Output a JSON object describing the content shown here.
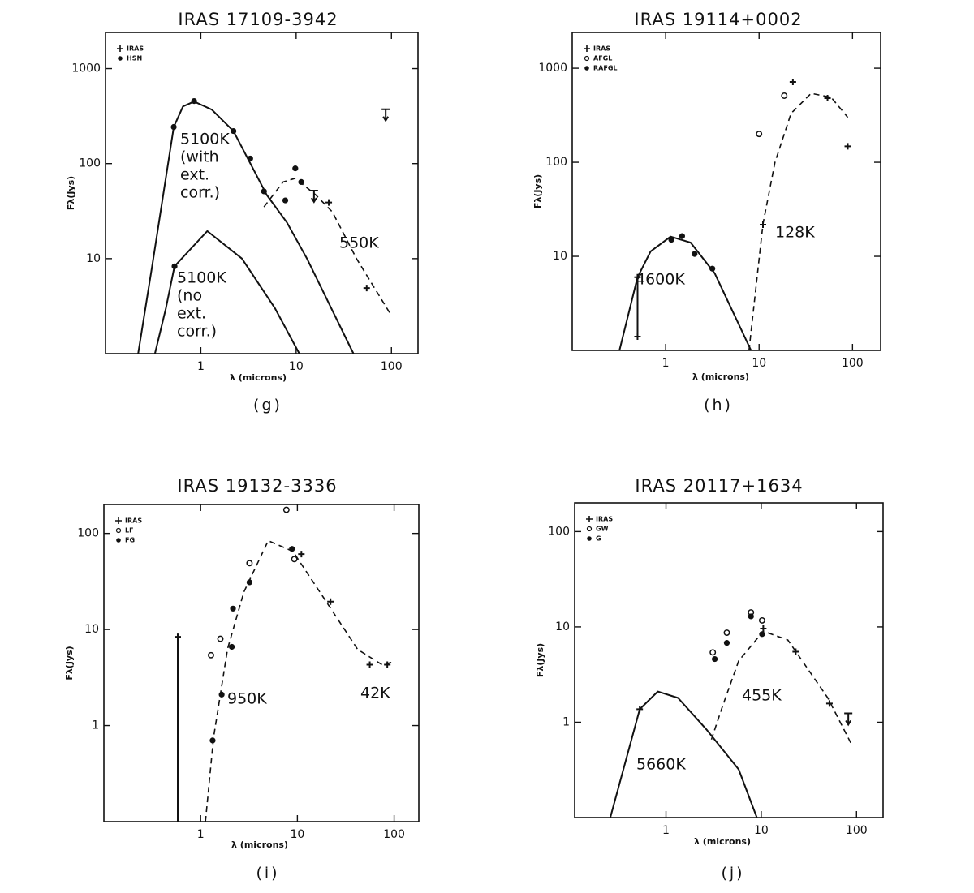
{
  "chart_data": [
    {
      "type": "scatter",
      "title": "IRAS 17109-3942",
      "xlabel": "λ (microns)",
      "ylabel": "Fλ(Jys)",
      "panel": "(g)",
      "log_x": true,
      "log_y": true,
      "xlim": [
        0.1,
        190
      ],
      "ylim": [
        1,
        2400
      ],
      "xticks": [
        1,
        10,
        100
      ],
      "yticks": [
        10,
        100,
        1000
      ],
      "series": [
        {
          "name": "IRAS",
          "marker": "plus",
          "x": [
            15.4,
            22,
            55,
            87
          ],
          "values": [
            52,
            39,
            4.9,
            373
          ],
          "upper_limit": [
            true,
            false,
            false,
            true
          ]
        },
        {
          "name": "HSN",
          "marker": "filled",
          "x": [
            0.52,
            0.85,
            2.2,
            3.3,
            4.6,
            7.7,
            9.8,
            11.3,
            0.53
          ],
          "values": [
            243,
            455,
            220,
            113,
            51,
            41,
            89,
            64,
            8.3
          ]
        }
      ],
      "curves": [
        {
          "style": "solid",
          "x": [
            0.22,
            0.31,
            0.52,
            0.65,
            0.85,
            1.3,
            2.2,
            4.9,
            8,
            13,
            40
          ],
          "values": [
            1,
            8.6,
            243,
            400,
            450,
            370,
            220,
            47,
            24,
            10,
            1
          ]
        },
        {
          "style": "solid",
          "x": [
            0.33,
            0.43,
            0.53,
            1.17,
            2.7,
            6,
            10.8
          ],
          "values": [
            1,
            3,
            8.3,
            19.5,
            10,
            3,
            1
          ]
        },
        {
          "style": "dashed",
          "x": [
            4.6,
            7.3,
            9.8,
            16,
            24,
            43,
            98
          ],
          "values": [
            35,
            64,
            70,
            47,
            31,
            10,
            2.6
          ]
        }
      ],
      "annotations": [
        [
          "5100K",
          "(with",
          "ext.",
          "corr.)"
        ],
        [
          "5100K",
          "(no",
          "ext.",
          "corr.)"
        ],
        [
          "550K"
        ]
      ]
    },
    {
      "type": "scatter",
      "title": "IRAS 19114+0002",
      "xlabel": "λ (microns)",
      "ylabel": "Fλ(Jys)",
      "panel": "(h)",
      "log_x": true,
      "log_y": true,
      "xlim": [
        0.1,
        200
      ],
      "ylim": [
        1,
        2400
      ],
      "xticks": [
        1,
        10,
        100
      ],
      "yticks": [
        10,
        100,
        1000
      ],
      "series": [
        {
          "name": "IRAS",
          "marker": "plus",
          "x": [
            0.5,
            0.5,
            11,
            23,
            54,
            89
          ],
          "values": [
            6,
            1.4,
            21.7,
            715,
            480,
            148
          ],
          "upper_limit": [
            false,
            false,
            false,
            false,
            false,
            false
          ]
        },
        {
          "name": "AFGL",
          "marker": "open",
          "x": [
            10,
            18.6
          ],
          "values": [
            200,
            510
          ]
        },
        {
          "name": "RAFGL",
          "marker": "filled",
          "x": [
            1.15,
            1.5,
            2.04,
            3.16
          ],
          "values": [
            15,
            16.4,
            10.6,
            7.4
          ]
        }
      ],
      "curves": [
        {
          "style": "solid",
          "x": [
            0.32,
            0.5,
            0.69,
            1.13,
            1.85,
            3.35,
            8.2
          ],
          "values": [
            1,
            6,
            11.3,
            16.2,
            14,
            6.6,
            1
          ]
        },
        {
          "style": "solid",
          "x": [
            0.5,
            0.5
          ],
          "values": [
            1.4,
            6
          ]
        },
        {
          "style": "dashed",
          "x": [
            7.8,
            11,
            14.8,
            22,
            36,
            59,
            89
          ],
          "values": [
            1,
            22,
            100,
            330,
            540,
            490,
            300
          ]
        }
      ],
      "annotations": [
        [
          "4600K"
        ],
        [
          "128K"
        ]
      ]
    },
    {
      "type": "scatter",
      "title": "IRAS 19132-3336",
      "xlabel": "λ (microns)",
      "ylabel": "Fλ(Jys)",
      "panel": "(i)",
      "log_x": true,
      "log_y": true,
      "xlim": [
        0.1,
        180
      ],
      "ylim": [
        0.1,
        200
      ],
      "xticks": [
        1,
        10,
        100
      ],
      "yticks": [
        1,
        10,
        100
      ],
      "series": [
        {
          "name": "IRAS",
          "marker": "plus",
          "x": [
            0.58,
            11,
            22,
            56,
            85
          ],
          "values": [
            8.4,
            61,
            19.5,
            4.3,
            4.3
          ],
          "upper_limit": [
            false,
            false,
            false,
            false,
            false
          ]
        },
        {
          "name": "LF",
          "marker": "open",
          "x": [
            1.28,
            1.6,
            3.2,
            7.7,
            9.3
          ],
          "values": [
            5.4,
            8,
            49,
            176,
            54
          ]
        },
        {
          "name": "FG",
          "marker": "filled",
          "x": [
            1.33,
            1.65,
            2.16,
            2.1,
            3.2,
            8.8
          ],
          "values": [
            0.7,
            2.1,
            16.5,
            6.6,
            31,
            69
          ]
        }
      ],
      "curves": [
        {
          "style": "solid",
          "x": [
            0.58,
            0.58
          ],
          "values": [
            0.1,
            8.4
          ]
        },
        {
          "style": "dashed",
          "x": [
            1.12,
            1.36,
            1.9,
            2.8,
            5,
            9,
            19.5,
            42,
            75,
            100
          ],
          "values": [
            0.1,
            0.75,
            6.3,
            24.6,
            84,
            65,
            20,
            6.2,
            4.3,
            4.6
          ]
        }
      ],
      "annotations": [
        [
          "950K"
        ],
        [
          "42K"
        ]
      ]
    },
    {
      "type": "scatter",
      "title": "IRAS 20117+1634",
      "xlabel": "λ (microns)",
      "ylabel": "Fλ(Jys)",
      "panel": "(j)",
      "log_x": true,
      "log_y": true,
      "xlim": [
        0.11,
        190
      ],
      "ylim": [
        0.1,
        200
      ],
      "xticks": [
        1,
        10,
        100
      ],
      "yticks": [
        1,
        10,
        100
      ],
      "series": [
        {
          "name": "IRAS",
          "marker": "plus",
          "x": [
            0.53,
            10.5,
            23,
            52,
            82
          ],
          "values": [
            1.37,
            9.6,
            5.5,
            1.57,
            1.24
          ],
          "upper_limit": [
            false,
            false,
            false,
            false,
            true
          ]
        },
        {
          "name": "GW",
          "marker": "open",
          "x": [
            3.1,
            4.35,
            7.8,
            10.2
          ],
          "values": [
            5.4,
            8.7,
            14.2,
            11.7
          ]
        },
        {
          "name": "G",
          "marker": "filled",
          "x": [
            3.25,
            4.35,
            7.8,
            10.2
          ],
          "values": [
            4.6,
            6.8,
            12.9,
            8.4
          ]
        }
      ],
      "curves": [
        {
          "style": "solid",
          "x": [
            0.26,
            0.53,
            0.82,
            1.34,
            2.66,
            5.8,
            9
          ],
          "values": [
            0.1,
            1.37,
            2.1,
            1.8,
            0.84,
            0.32,
            0.1
          ]
        },
        {
          "style": "dashed",
          "x": [
            3,
            3.95,
            5.8,
            10.5,
            19,
            50,
            90
          ],
          "values": [
            0.66,
            1.5,
            4.4,
            9,
            7.3,
            1.8,
            0.57
          ]
        }
      ],
      "annotations": [
        [
          "5660K"
        ],
        [
          "455K"
        ]
      ]
    }
  ]
}
